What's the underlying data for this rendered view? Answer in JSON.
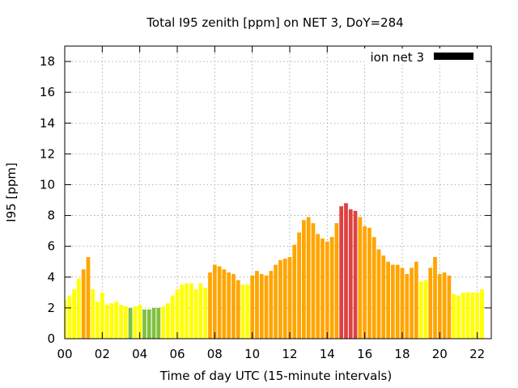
{
  "chart_data": {
    "type": "bar",
    "title": "Total I95 zenith [ppm] on NET 3, DoY=284",
    "xlabel": "Time of day UTC (15-minute intervals)",
    "ylabel": "I95 [ppm]",
    "xlim": [
      0,
      22.75
    ],
    "ylim": [
      0,
      19
    ],
    "x_ticks": [
      "00",
      "02",
      "04",
      "06",
      "08",
      "10",
      "12",
      "14",
      "16",
      "18",
      "20",
      "22"
    ],
    "y_ticks": [
      "0",
      "2",
      "4",
      "6",
      "8",
      "10",
      "12",
      "14",
      "16",
      "18"
    ],
    "grid": true,
    "legend": {
      "position": "top-right",
      "label": "ion net 3",
      "color": "#000000"
    },
    "colors": {
      "yellow": "#ffff00",
      "green": "#80c040",
      "orange": "#ffa500",
      "red": "#e04040"
    },
    "bar_step_hours": 0.25,
    "values": [
      2.5,
      2.8,
      3.2,
      3.9,
      4.5,
      5.3,
      3.2,
      2.4,
      3.0,
      2.2,
      2.3,
      2.4,
      2.2,
      2.1,
      2.0,
      2.1,
      2.2,
      1.9,
      1.9,
      2.0,
      2.0,
      2.1,
      2.3,
      2.8,
      3.2,
      3.5,
      3.6,
      3.6,
      3.2,
      3.6,
      3.3,
      4.3,
      4.8,
      4.7,
      4.5,
      4.3,
      4.2,
      3.8,
      3.5,
      3.5,
      4.1,
      4.4,
      4.2,
      4.1,
      4.4,
      4.8,
      5.1,
      5.2,
      5.3,
      6.1,
      6.9,
      7.7,
      7.9,
      7.5,
      6.8,
      6.5,
      6.3,
      6.6,
      7.5,
      8.6,
      8.8,
      8.4,
      8.3,
      7.9,
      7.3,
      7.2,
      6.6,
      5.8,
      5.4,
      5.0,
      4.8,
      4.8,
      4.6,
      4.2,
      4.6,
      5.0,
      3.7,
      3.8,
      4.6,
      5.3,
      4.2,
      4.3,
      4.1,
      2.9,
      2.8,
      3.0,
      3.0,
      3.0,
      3.0,
      3.2
    ],
    "bar_colors": [
      "yellow",
      "yellow",
      "yellow",
      "yellow",
      "orange",
      "orange",
      "yellow",
      "yellow",
      "yellow",
      "yellow",
      "yellow",
      "yellow",
      "yellow",
      "yellow",
      "green",
      "yellow",
      "yellow",
      "green",
      "green",
      "green",
      "green",
      "yellow",
      "yellow",
      "yellow",
      "yellow",
      "yellow",
      "yellow",
      "yellow",
      "yellow",
      "yellow",
      "yellow",
      "orange",
      "orange",
      "orange",
      "orange",
      "orange",
      "orange",
      "orange",
      "yellow",
      "yellow",
      "orange",
      "orange",
      "orange",
      "orange",
      "orange",
      "orange",
      "orange",
      "orange",
      "orange",
      "orange",
      "orange",
      "orange",
      "orange",
      "orange",
      "orange",
      "orange",
      "orange",
      "orange",
      "orange",
      "red",
      "red",
      "red",
      "red",
      "orange",
      "orange",
      "orange",
      "orange",
      "orange",
      "orange",
      "orange",
      "orange",
      "orange",
      "orange",
      "orange",
      "orange",
      "orange",
      "yellow",
      "yellow",
      "orange",
      "orange",
      "orange",
      "orange",
      "orange",
      "yellow",
      "yellow",
      "yellow",
      "yellow",
      "yellow",
      "yellow",
      "yellow"
    ]
  }
}
